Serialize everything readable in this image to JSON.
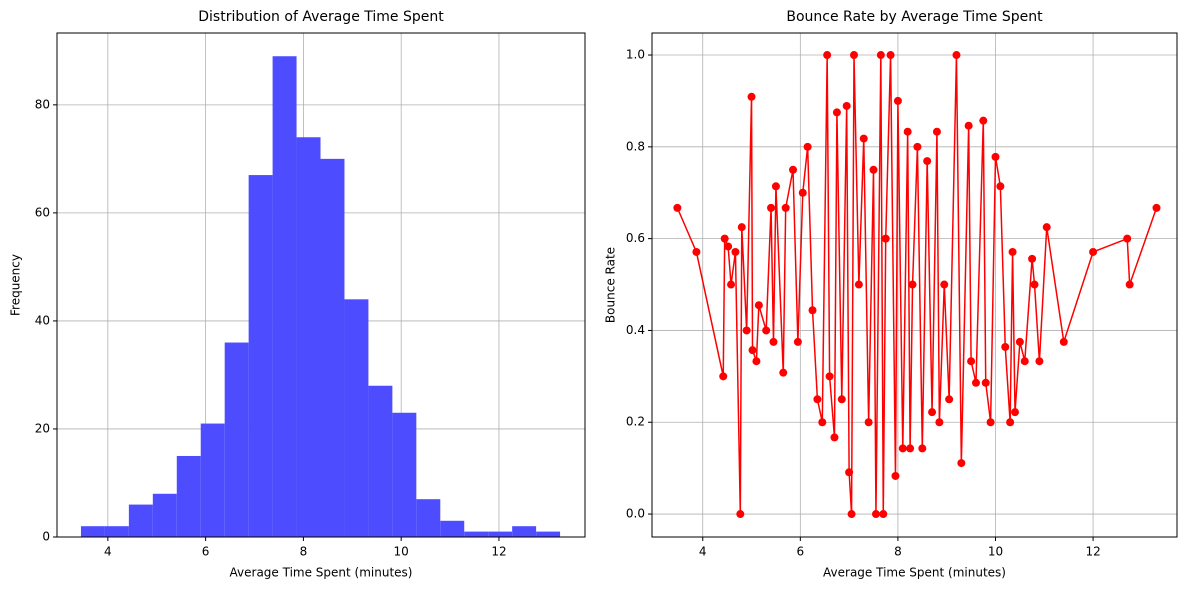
{
  "chart_data": [
    {
      "type": "histogram",
      "title": "Distribution of Average Time Spent",
      "x_label": "Average Time Spent (minutes)",
      "y_label": "Frequency",
      "bins": [
        3.45,
        3.94,
        4.43,
        4.92,
        5.41,
        5.9,
        6.39,
        6.88,
        7.37,
        7.86,
        8.35,
        8.84,
        9.33,
        9.82,
        10.31,
        10.8,
        11.29,
        11.78,
        12.27,
        12.76,
        13.25
      ],
      "counts": [
        2,
        2,
        6,
        8,
        15,
        21,
        36,
        67,
        89,
        74,
        70,
        44,
        28,
        23,
        7,
        3,
        1,
        1,
        2,
        1
      ],
      "color": "#4d4dff",
      "xlim": [
        2.96,
        13.76
      ],
      "ylim": [
        0,
        93.3
      ],
      "xticks": [
        4,
        6,
        8,
        10,
        12
      ],
      "yticks": [
        0,
        20,
        40,
        60,
        80
      ],
      "grid": true
    },
    {
      "type": "line",
      "title": "Bounce Rate by Average Time Spent",
      "x_label": "Average Time Spent (minutes)",
      "y_label": "Bounce Rate",
      "x": [
        3.48,
        3.87,
        4.42,
        4.45,
        4.52,
        4.58,
        4.67,
        4.77,
        4.8,
        4.9,
        5.0,
        5.02,
        5.1,
        5.15,
        5.3,
        5.4,
        5.45,
        5.5,
        5.65,
        5.7,
        5.85,
        5.95,
        6.05,
        6.15,
        6.25,
        6.35,
        6.45,
        6.55,
        6.6,
        6.7,
        6.75,
        6.85,
        6.95,
        7.0,
        7.05,
        7.1,
        7.2,
        7.3,
        7.4,
        7.5,
        7.55,
        7.65,
        7.7,
        7.75,
        7.85,
        7.95,
        8.0,
        8.1,
        8.2,
        8.25,
        8.3,
        8.4,
        8.5,
        8.6,
        8.7,
        8.8,
        8.85,
        8.95,
        9.05,
        9.2,
        9.3,
        9.45,
        9.5,
        9.6,
        9.75,
        9.8,
        9.9,
        10.0,
        10.1,
        10.2,
        10.3,
        10.35,
        10.4,
        10.5,
        10.6,
        10.75,
        10.8,
        10.9,
        11.05,
        11.4,
        12.0,
        12.7,
        12.75,
        13.3
      ],
      "series": [
        {
          "name": "Bounce Rate",
          "color": "#ff0000",
          "values": [
            0.667,
            0.571,
            0.3,
            0.6,
            0.583,
            0.5,
            0.571,
            0,
            0.625,
            0.4,
            0.909,
            0.357,
            0.333,
            0.455,
            0.4,
            0.667,
            0.375,
            0.714,
            0.308,
            0.667,
            0.75,
            0.375,
            0.7,
            0.8,
            0.444,
            0.25,
            0.2,
            1.0,
            0.3,
            0.167,
            0.875,
            0.25,
            0.889,
            0.091,
            0,
            1.0,
            0.5,
            0.818,
            0.2,
            0.75,
            0,
            1.0,
            0,
            0.6,
            1.0,
            0.083,
            0.9,
            0.143,
            0.833,
            0.143,
            0.5,
            0.8,
            0.143,
            0.769,
            0.222,
            0.833,
            0.2,
            0.5,
            0.25,
            1.0,
            0.111,
            0.846,
            0.333,
            0.286,
            0.857,
            0.286,
            0.2,
            0.778,
            0.714,
            0.364,
            0.2,
            0.571,
            0.222,
            0.375,
            0.333,
            0.556,
            0.5,
            0.333,
            0.625,
            0.375,
            0.571,
            0.6,
            0.5,
            0.667
          ]
        }
      ],
      "xlim": [
        2.96,
        13.72
      ],
      "ylim": [
        -0.05,
        1.048
      ],
      "xticks": [
        4,
        6,
        8,
        10,
        12
      ],
      "yticks": [
        {
          "value": 0,
          "label": "0.0"
        },
        0.2,
        0.4,
        0.6,
        0.8,
        {
          "value": 1,
          "label": "1.0"
        }
      ],
      "grid": true
    }
  ]
}
